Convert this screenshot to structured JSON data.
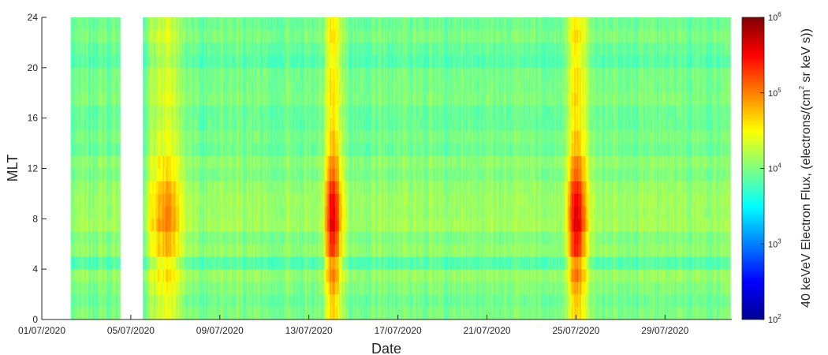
{
  "chart_data": {
    "type": "heatmap",
    "xlabel": "Date",
    "ylabel": "MLT",
    "x_ticks": [
      "01/07/2020",
      "05/07/2020",
      "09/07/2020",
      "13/07/2020",
      "17/07/2020",
      "21/07/2020",
      "25/07/2020",
      "29/07/2020"
    ],
    "x_range_days": [
      1,
      32
    ],
    "y_ticks": [
      "0",
      "4",
      "8",
      "12",
      "16",
      "20",
      "24"
    ],
    "ylim": [
      0,
      24
    ],
    "y_bin_width_hours": 1,
    "data_start_day": 2.3,
    "data_end_day": 31.9,
    "data_gap_days": [
      4.5,
      5.5
    ],
    "colorbar": {
      "label_prefix": "40 keVeV Electron Flux, (electrons/(cm",
      "label_sup": "2",
      "label_suffix": " sr keV s))",
      "log_range": [
        2,
        6
      ],
      "ticks": [
        {
          "base": "10",
          "exp": "6"
        },
        {
          "base": "10",
          "exp": "5"
        },
        {
          "base": "10",
          "exp": "4"
        },
        {
          "base": "10",
          "exp": "3"
        },
        {
          "base": "10",
          "exp": "2"
        }
      ]
    },
    "features": {
      "background_log_flux": 3.95,
      "events": [
        {
          "start_day": 5.8,
          "peak_day": 6.6,
          "peak_log_flux": 4.8,
          "duration_days": 1.5
        },
        {
          "start_day": 13.7,
          "peak_day": 14.0,
          "peak_log_flux": 5.45,
          "duration_days": 1.0
        },
        {
          "start_day": 24.6,
          "peak_day": 25.0,
          "peak_log_flux": 5.5,
          "duration_days": 1.0
        }
      ],
      "dawn_peak_mlt": 8,
      "low_flux_mlt_band": [
        4,
        5
      ]
    }
  }
}
